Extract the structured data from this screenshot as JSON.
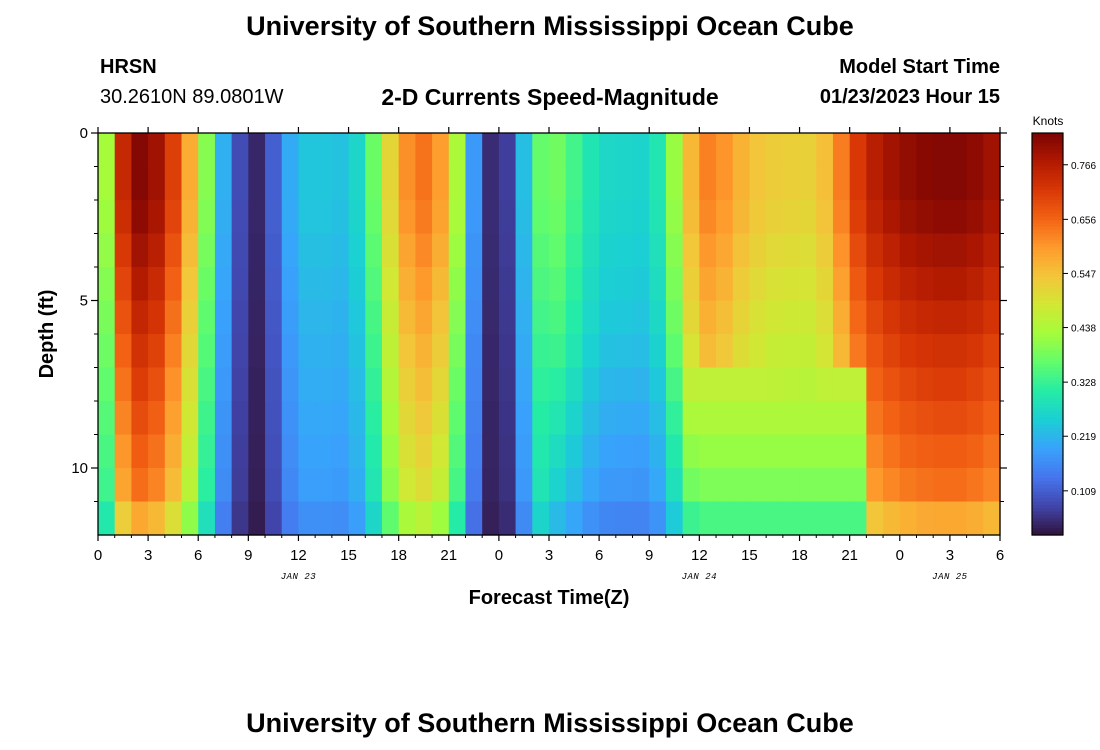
{
  "page": {
    "title_top": "University of Southern Mississippi Ocean Cube",
    "title_bottom": "University of Southern Mississippi Ocean Cube",
    "station": "HRSN",
    "coords": "30.2610N  89.0801W",
    "subtitle": "2-D Currents Speed-Magnitude",
    "model_start_label": "Model Start Time",
    "model_start_value": "01/23/2023 Hour 15"
  },
  "colors": {
    "colormap": [
      "#30123b",
      "#4145ab",
      "#4675ed",
      "#39a2fc",
      "#1bcfd4",
      "#24eca6",
      "#61fc6c",
      "#a4fc3b",
      "#d1e834",
      "#f3c63a",
      "#fe9b2d",
      "#f36315",
      "#d93806",
      "#b11901",
      "#7a0403"
    ]
  },
  "chart_data": {
    "type": "heatmap",
    "xlabel": "Forecast Time(Z)",
    "ylabel": "Depth (ft)",
    "colorbar_label": "Knots",
    "x_tick_labels": [
      "0",
      "3",
      "6",
      "9",
      "12",
      "15",
      "18",
      "21",
      "0",
      "3",
      "6",
      "9",
      "12",
      "15",
      "18",
      "21",
      "0",
      "3",
      "6"
    ],
    "date_labels": [
      {
        "label": "JAN 23",
        "hour": 12
      },
      {
        "label": "JAN 24",
        "hour": 36
      },
      {
        "label": "JAN 25",
        "hour": 51
      }
    ],
    "x_range_hours": [
      0,
      54
    ],
    "y_ticks": [
      0,
      5,
      10
    ],
    "y_range_ft": [
      0,
      12
    ],
    "depth_levels_ft": [
      0.5,
      1.5,
      2.5,
      3.5,
      4.5,
      5.5,
      6.5,
      7.5,
      8.5,
      9.5,
      10.5,
      11.5
    ],
    "colorbar_ticks": [
      "0.766",
      "0.656",
      "0.547",
      "0.438",
      "0.328",
      "0.219",
      "0.109"
    ],
    "colorbar_range_knots": [
      0.02,
      0.83
    ],
    "surface_speed_knots": [
      {
        "hour": 0.0,
        "v": 0.4
      },
      {
        "hour": 0.3,
        "v": 0.3
      },
      {
        "hour": 0.7,
        "v": 0.55
      },
      {
        "hour": 1.2,
        "v": 0.72
      },
      {
        "hour": 2.5,
        "v": 0.82
      },
      {
        "hour": 3.0,
        "v": 0.82
      },
      {
        "hour": 4.0,
        "v": 0.76
      },
      {
        "hour": 5.0,
        "v": 0.65
      },
      {
        "hour": 6.0,
        "v": 0.5
      },
      {
        "hour": 7.0,
        "v": 0.3
      },
      {
        "hour": 8.0,
        "v": 0.12
      },
      {
        "hour": 9.2,
        "v": 0.04
      },
      {
        "hour": 10.0,
        "v": 0.05
      },
      {
        "hour": 11.0,
        "v": 0.17
      },
      {
        "hour": 12.0,
        "v": 0.24
      },
      {
        "hour": 14.0,
        "v": 0.24
      },
      {
        "hour": 15.0,
        "v": 0.23
      },
      {
        "hour": 16.0,
        "v": 0.3
      },
      {
        "hour": 17.0,
        "v": 0.45
      },
      {
        "hour": 18.0,
        "v": 0.58
      },
      {
        "hour": 19.0,
        "v": 0.64
      },
      {
        "hour": 20.0,
        "v": 0.64
      },
      {
        "hour": 21.0,
        "v": 0.55
      },
      {
        "hour": 22.0,
        "v": 0.32
      },
      {
        "hour": 22.8,
        "v": 0.1
      },
      {
        "hour": 23.5,
        "v": 0.05
      },
      {
        "hour": 24.3,
        "v": 0.05
      },
      {
        "hour": 25.0,
        "v": 0.12
      },
      {
        "hour": 26.0,
        "v": 0.34
      },
      {
        "hour": 27.0,
        "v": 0.4
      },
      {
        "hour": 28.0,
        "v": 0.36
      },
      {
        "hour": 30.0,
        "v": 0.27
      },
      {
        "hour": 33.0,
        "v": 0.26
      },
      {
        "hour": 34.0,
        "v": 0.33
      },
      {
        "hour": 35.0,
        "v": 0.5
      },
      {
        "hour": 36.0,
        "v": 0.62
      },
      {
        "hour": 37.0,
        "v": 0.63
      },
      {
        "hour": 38.0,
        "v": 0.58
      },
      {
        "hour": 40.0,
        "v": 0.53
      },
      {
        "hour": 43.0,
        "v": 0.52
      },
      {
        "hour": 44.0,
        "v": 0.58
      },
      {
        "hour": 45.0,
        "v": 0.68
      },
      {
        "hour": 46.0,
        "v": 0.75
      },
      {
        "hour": 48.0,
        "v": 0.8
      },
      {
        "hour": 50.0,
        "v": 0.82
      },
      {
        "hour": 52.0,
        "v": 0.82
      },
      {
        "hour": 54.0,
        "v": 0.78
      }
    ]
  }
}
